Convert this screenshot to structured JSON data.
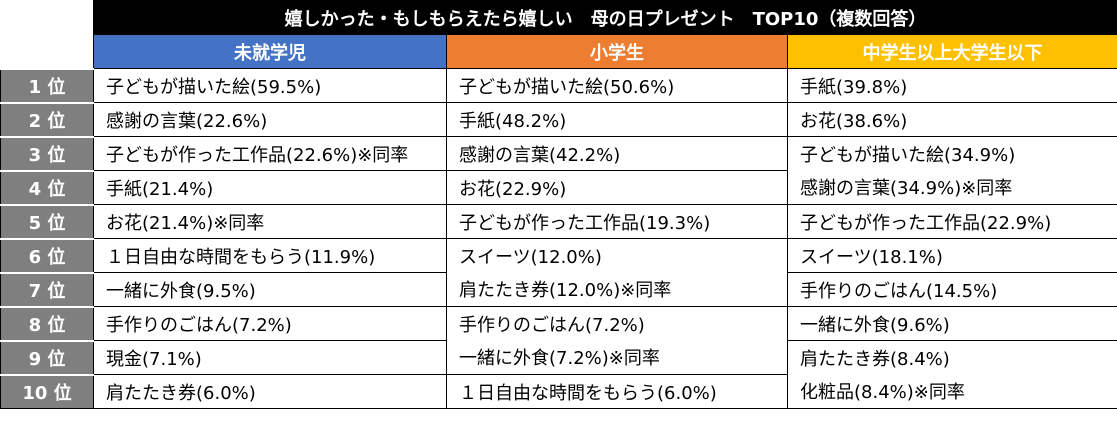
{
  "title": "嬉しかった・もしもらえたら嬉しい　母の日プレゼント　TOP10（複数回答）",
  "columns": [
    "未就学児",
    "小学生",
    "中学生以上大学生以下"
  ],
  "colors": {
    "title_bg": "#000000",
    "col1": "#4472c4",
    "col2": "#ed7d31",
    "col3": "#ffc000",
    "rank_bg": "#7f7f7f"
  },
  "ranks": [
    "1 位",
    "2 位",
    "3 位",
    "4 位",
    "5 位",
    "6 位",
    "7 位",
    "8 位",
    "9 位",
    "10 位"
  ],
  "col1": [
    "子どもが描いた絵(59.5%)",
    "感謝の言葉(22.6%)",
    "子どもが作った工作品(22.6%)※同率",
    "手紙(21.4%)",
    "お花(21.4%)※同率",
    "１日自由な時間をもらう(11.9%)",
    "一緒に外食(9.5%)",
    "手作りのごはん(7.2%)",
    "現金(7.1%)",
    "肩たたき券(6.0%)"
  ],
  "col2": [
    "子どもが描いた絵(50.6%)",
    "手紙(48.2%)",
    "感謝の言葉(42.2%)",
    "お花(22.9%)",
    "子どもが作った工作品(19.3%)",
    "スイーツ(12.0%)",
    "肩たたき券(12.0%)※同率",
    "手作りのごはん(7.2%)",
    "一緒に外食(7.2%)※同率",
    "１日自由な時間をもらう(6.0%)"
  ],
  "col3": [
    "手紙(39.8%)",
    "お花(38.6%)",
    "子どもが描いた絵(34.9%)",
    "感謝の言葉(34.9%)※同率",
    "子どもが作った工作品(22.9%)",
    "スイーツ(18.1%)",
    "手作りのごはん(14.5%)",
    "一緒に外食(9.6%)",
    "肩たたき券(8.4%)",
    "化粧品(8.4%)※同率"
  ]
}
